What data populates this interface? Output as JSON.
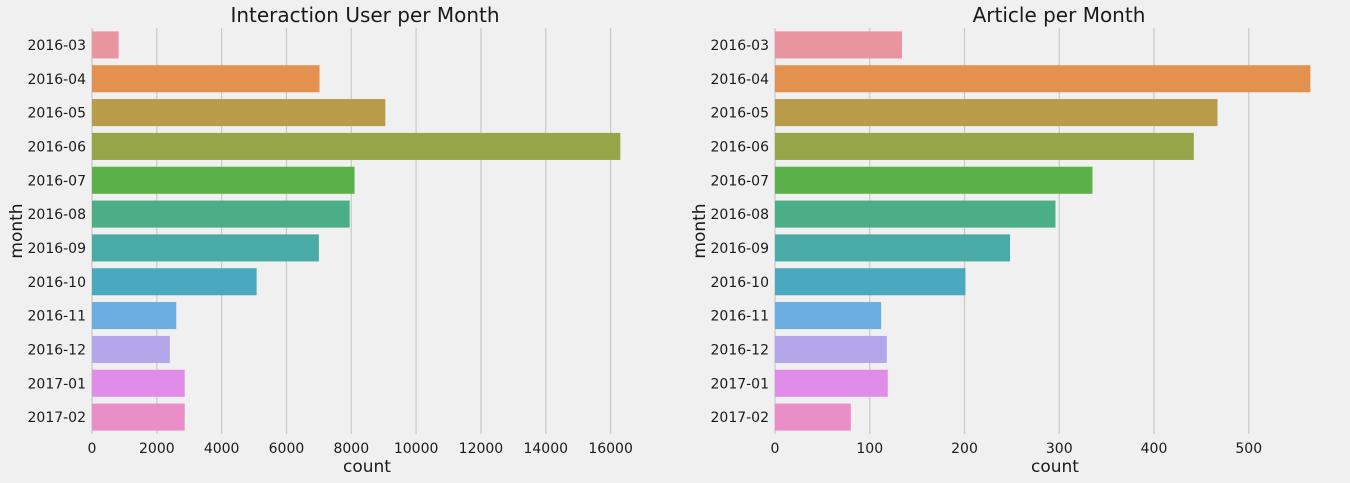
{
  "chart_data": [
    {
      "type": "bar",
      "orientation": "horizontal",
      "title": "Interaction User per Month",
      "xlabel": "count",
      "ylabel": "month",
      "categories": [
        "2016-03",
        "2016-04",
        "2016-05",
        "2016-06",
        "2016-07",
        "2016-08",
        "2016-09",
        "2016-10",
        "2016-11",
        "2016-12",
        "2017-01",
        "2017-02"
      ],
      "values": [
        820,
        7020,
        9050,
        16300,
        8100,
        7950,
        7000,
        5080,
        2600,
        2400,
        2860,
        2860
      ],
      "xlim": [
        0,
        17000
      ],
      "xticks": [
        0,
        2000,
        4000,
        6000,
        8000,
        10000,
        12000,
        14000,
        16000
      ],
      "grid": "vertical"
    },
    {
      "type": "bar",
      "orientation": "horizontal",
      "title": "Article per Month",
      "xlabel": "count",
      "ylabel": "month",
      "categories": [
        "2016-03",
        "2016-04",
        "2016-05",
        "2016-06",
        "2016-07",
        "2016-08",
        "2016-09",
        "2016-10",
        "2016-11",
        "2016-12",
        "2017-01",
        "2017-02"
      ],
      "values": [
        134,
        565,
        467,
        442,
        335,
        296,
        248,
        201,
        112,
        118,
        119,
        80
      ],
      "xlim": [
        0,
        591
      ],
      "xticks": [
        0,
        100,
        200,
        300,
        400,
        500
      ],
      "grid": "vertical"
    }
  ],
  "colors": [
    "#e8959f",
    "#e3914f",
    "#b99c49",
    "#96a547",
    "#5bb04a",
    "#4bae86",
    "#4aaaa5",
    "#4aa9be",
    "#6bade0",
    "#b3a7ea",
    "#e08de9",
    "#e98ec6"
  ]
}
